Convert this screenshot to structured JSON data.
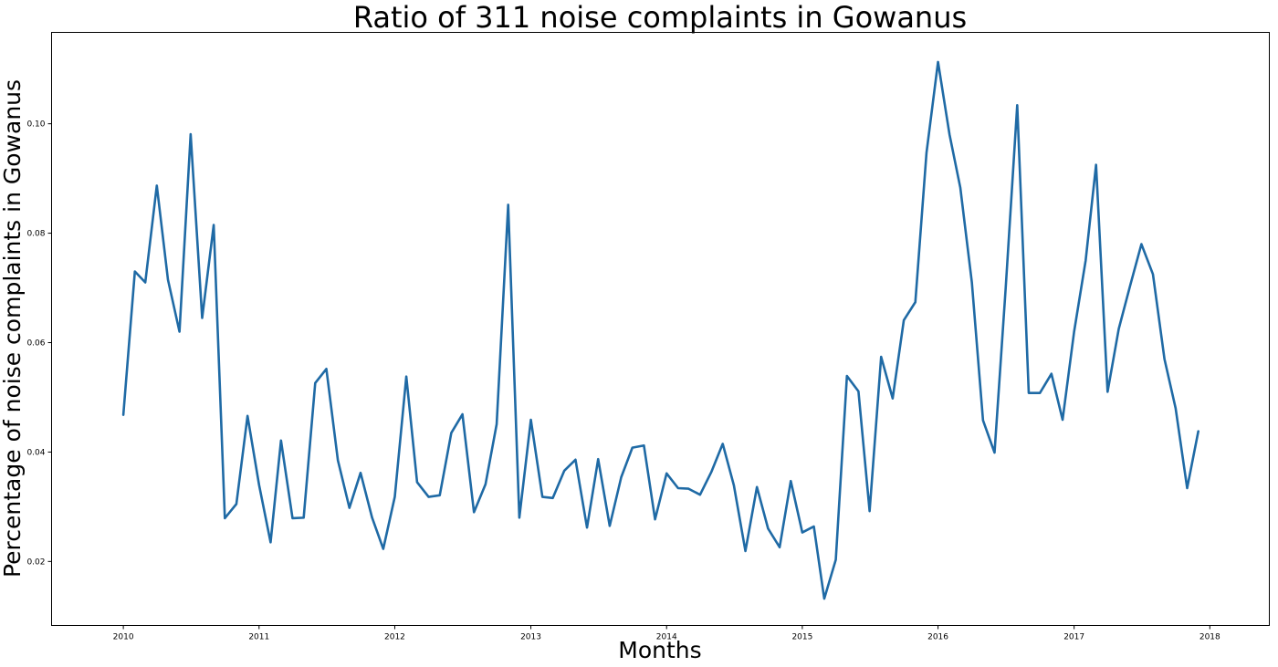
{
  "chart_data": {
    "type": "line",
    "title": "Ratio of 311 noise complaints in Gowanus",
    "xlabel": "Months",
    "ylabel": "Percentage of noise complaints in Gowanus",
    "x_start": "2010-01",
    "x_step": "1 month",
    "xlim": [
      "2009-06-22",
      "2018-06-10"
    ],
    "ylim": [
      0.0083,
      0.1167
    ],
    "grid": false,
    "legend": false,
    "xticks": [
      {
        "value": 2010,
        "label": "2010"
      },
      {
        "value": 2011,
        "label": "2011"
      },
      {
        "value": 2012,
        "label": "2012"
      },
      {
        "value": 2013,
        "label": "2013"
      },
      {
        "value": 2014,
        "label": "2014"
      },
      {
        "value": 2015,
        "label": "2015"
      },
      {
        "value": 2016,
        "label": "2016"
      },
      {
        "value": 2017,
        "label": "2017"
      },
      {
        "value": 2018,
        "label": "2018"
      }
    ],
    "yticks": [
      {
        "value": 0.02,
        "label": "0.02"
      },
      {
        "value": 0.04,
        "label": "0.04"
      },
      {
        "value": 0.06,
        "label": "0.06"
      },
      {
        "value": 0.08,
        "label": "0.08"
      },
      {
        "value": 0.1,
        "label": "0.10"
      }
    ],
    "series": [
      {
        "color": "#1f6aa5",
        "values": [
          0.0468,
          0.073,
          0.071,
          0.0887,
          0.0715,
          0.062,
          0.0981,
          0.0645,
          0.0815,
          0.0279,
          0.0305,
          0.0466,
          0.034,
          0.0235,
          0.0421,
          0.0279,
          0.028,
          0.0526,
          0.0552,
          0.0385,
          0.0298,
          0.0362,
          0.028,
          0.0223,
          0.0318,
          0.0538,
          0.0345,
          0.0318,
          0.0321,
          0.0435,
          0.0469,
          0.029,
          0.0341,
          0.0451,
          0.0852,
          0.028,
          0.0459,
          0.0318,
          0.0316,
          0.0366,
          0.0386,
          0.0262,
          0.0387,
          0.0265,
          0.0354,
          0.0408,
          0.0412,
          0.0277,
          0.0361,
          0.0334,
          0.0333,
          0.0322,
          0.0363,
          0.0415,
          0.0339,
          0.0219,
          0.0336,
          0.026,
          0.0226,
          0.0347,
          0.0253,
          0.0264,
          0.0132,
          0.0203,
          0.0539,
          0.0511,
          0.0292,
          0.0574,
          0.0498,
          0.0641,
          0.0674,
          0.0947,
          0.1113,
          0.098,
          0.0883,
          0.071,
          0.0458,
          0.0399,
          0.07,
          0.1034,
          0.0508,
          0.0508,
          0.0543,
          0.0459,
          0.062,
          0.075,
          0.0925,
          0.051,
          0.0625,
          0.0705,
          0.078,
          0.0725,
          0.057,
          0.048,
          0.0334,
          0.0438
        ]
      }
    ]
  }
}
